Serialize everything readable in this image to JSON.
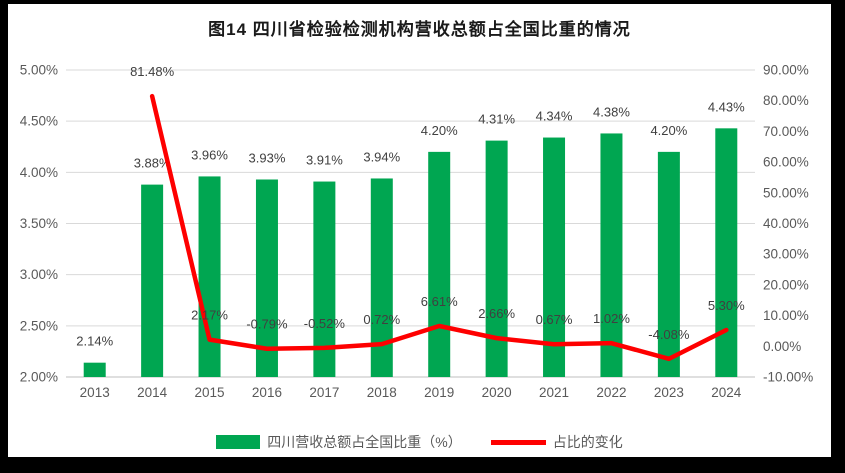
{
  "chart_data": {
    "type": "combo-bar-line",
    "title": "图14  四川省检验检测机构营收总额占全国比重的情况",
    "categories": [
      "2013",
      "2014",
      "2015",
      "2016",
      "2017",
      "2018",
      "2019",
      "2020",
      "2021",
      "2022",
      "2023",
      "2024"
    ],
    "series": [
      {
        "name": "四川营收总额占全国比重（%）",
        "type": "bar",
        "axis": "left",
        "color": "#00A651",
        "values": [
          2.14,
          3.88,
          3.96,
          3.93,
          3.91,
          3.94,
          4.2,
          4.31,
          4.34,
          4.38,
          4.2,
          4.43
        ],
        "labels": [
          "2.14%",
          "3.88%",
          "3.96%",
          "3.93%",
          "3.91%",
          "3.94%",
          "4.20%",
          "4.31%",
          "4.34%",
          "4.38%",
          "4.20%",
          "4.43%"
        ]
      },
      {
        "name": "占比的变化",
        "type": "line",
        "axis": "right",
        "color": "#FE0000",
        "values": [
          null,
          81.48,
          2.17,
          -0.79,
          -0.52,
          0.72,
          6.61,
          2.66,
          0.67,
          1.02,
          -4.08,
          5.3
        ],
        "labels": [
          "",
          "81.48%",
          "2.17%",
          "-0.79%",
          "-0.52%",
          "0.72%",
          "6.61%",
          "2.66%",
          "0.67%",
          "1.02%",
          "-4.08%",
          "5.30%"
        ]
      }
    ],
    "left_axis": {
      "min": 2,
      "max": 5,
      "ticks": [
        "5.00%",
        "4.50%",
        "4.00%",
        "3.50%",
        "3.00%",
        "2.50%",
        "2.00%"
      ]
    },
    "right_axis": {
      "min": -10,
      "max": 90,
      "ticks": [
        "90.00%",
        "80.00%",
        "70.00%",
        "60.00%",
        "50.00%",
        "40.00%",
        "30.00%",
        "20.00%",
        "10.00%",
        "0.00%",
        "-10.00%"
      ]
    },
    "grid": true,
    "legend_position": "bottom",
    "colors": {
      "gridline": "#D9D9D9",
      "axis_line": "#BFBFBF",
      "tick_text": "#595959",
      "label_text": "#404040",
      "title_text": "#1a1a1a",
      "background": "#ffffff",
      "frame": "#000000"
    }
  }
}
